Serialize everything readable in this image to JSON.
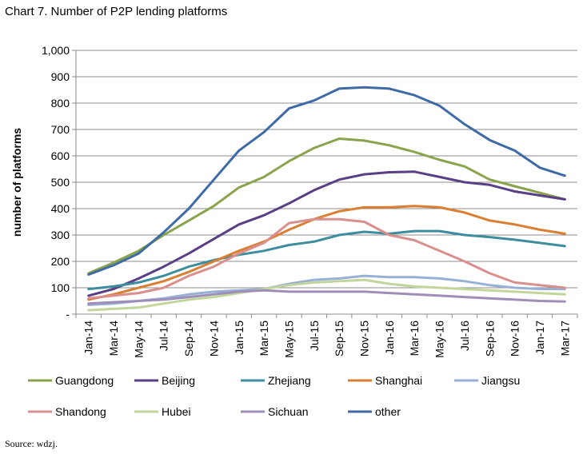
{
  "page": {
    "title": "Chart 7. Number of P2P lending platforms",
    "source": "Source: wdzj."
  },
  "chart_data": {
    "type": "line",
    "ylabel": "number of platforms",
    "ylim": [
      0,
      1000
    ],
    "yticks": [
      0,
      100,
      200,
      300,
      400,
      500,
      600,
      700,
      800,
      900,
      1000
    ],
    "ytick_labels": [
      "-",
      "100",
      "200",
      "300",
      "400",
      "500",
      "600",
      "700",
      "800",
      "900",
      "1,000"
    ],
    "xtick_labels": [
      "Jan-14",
      "Mar-14",
      "May-14",
      "Jul-14",
      "Sep-14",
      "Nov-14",
      "Jan-15",
      "Mar-15",
      "May-15",
      "Jul-15",
      "Sep-15",
      "Nov-15",
      "Jan-16",
      "Mar-16",
      "May-16",
      "Jul-16",
      "Sep-16",
      "Nov-16",
      "Jan-17",
      "Mar-17"
    ],
    "grid": "horizontal",
    "legend": "bottom",
    "x": [
      "Jan-14",
      "Mar-14",
      "May-14",
      "Jul-14",
      "Sep-14",
      "Nov-14",
      "Jan-15",
      "Mar-15",
      "May-15",
      "Jul-15",
      "Sep-15",
      "Nov-15",
      "Jan-16",
      "Mar-16",
      "May-16",
      "Jul-16",
      "Sep-16",
      "Nov-16",
      "Jan-17",
      "Mar-17"
    ],
    "series": [
      {
        "name": "Guangdong",
        "color": "#8aa34d",
        "values": [
          155,
          195,
          240,
          300,
          355,
          410,
          480,
          520,
          580,
          630,
          665,
          658,
          640,
          615,
          585,
          560,
          510,
          485,
          460,
          435
        ]
      },
      {
        "name": "Beijing",
        "color": "#5b3f86",
        "values": [
          70,
          95,
          135,
          180,
          230,
          285,
          340,
          375,
          420,
          470,
          510,
          530,
          538,
          540,
          520,
          500,
          490,
          465,
          450,
          435
        ]
      },
      {
        "name": "Zhejiang",
        "color": "#3d8d9e",
        "values": [
          95,
          105,
          120,
          145,
          180,
          205,
          225,
          240,
          262,
          275,
          300,
          312,
          305,
          315,
          315,
          300,
          292,
          282,
          270,
          258
        ]
      },
      {
        "name": "Shanghai",
        "color": "#d97f33",
        "values": [
          55,
          75,
          100,
          125,
          160,
          200,
          240,
          275,
          320,
          360,
          390,
          405,
          405,
          410,
          405,
          385,
          355,
          340,
          320,
          305
        ]
      },
      {
        "name": "Jiangsu",
        "color": "#98b0d6",
        "values": [
          35,
          40,
          50,
          60,
          75,
          85,
          90,
          95,
          115,
          130,
          135,
          145,
          140,
          140,
          135,
          125,
          110,
          100,
          95,
          95
        ]
      },
      {
        "name": "Shandong",
        "color": "#d9908d",
        "values": [
          60,
          70,
          80,
          100,
          145,
          180,
          230,
          270,
          345,
          360,
          360,
          350,
          300,
          280,
          240,
          200,
          155,
          120,
          110,
          100
        ]
      },
      {
        "name": "Hubei",
        "color": "#c2d69b",
        "values": [
          15,
          20,
          25,
          40,
          55,
          65,
          80,
          95,
          110,
          120,
          125,
          130,
          115,
          105,
          100,
          95,
          90,
          85,
          80,
          75
        ]
      },
      {
        "name": "Sichuan",
        "color": "#9f8fb8",
        "values": [
          40,
          45,
          50,
          55,
          65,
          75,
          85,
          90,
          85,
          85,
          85,
          85,
          80,
          75,
          70,
          65,
          60,
          55,
          50,
          48
        ]
      },
      {
        "name": "other",
        "color": "#3e6aa6",
        "values": [
          150,
          185,
          230,
          310,
          400,
          510,
          620,
          690,
          780,
          810,
          855,
          860,
          855,
          830,
          790,
          720,
          660,
          620,
          555,
          525
        ]
      }
    ]
  }
}
